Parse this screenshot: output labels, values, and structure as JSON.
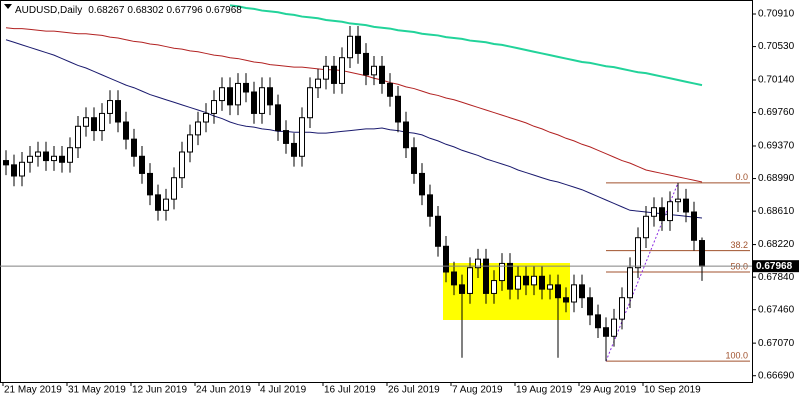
{
  "chart_data": {
    "type": "candlestick",
    "header": {
      "symbol": "AUDUSD,Daily"
    },
    "categories": [
      "21 May 2019",
      null,
      null,
      null,
      null,
      null,
      null,
      null,
      "31 May 2019",
      null,
      null,
      null,
      null,
      null,
      null,
      null,
      "12 Jun 2019",
      null,
      null,
      null,
      null,
      null,
      null,
      null,
      "24 Jun 2019",
      null,
      null,
      null,
      null,
      null,
      null,
      null,
      "4 Jul 2019",
      null,
      null,
      null,
      null,
      null,
      null,
      null,
      "16 Jul 2019",
      null,
      null,
      null,
      null,
      null,
      null,
      null,
      "26 Jul 2019",
      null,
      null,
      null,
      null,
      null,
      null,
      null,
      "7 Aug 2019",
      null,
      null,
      null,
      null,
      null,
      null,
      null,
      "19 Aug 2019",
      null,
      null,
      null,
      null,
      null,
      null,
      null,
      "29 Aug 2019",
      null,
      null,
      null,
      null,
      null,
      null,
      null,
      "10 Sep 2019",
      null,
      null,
      null,
      null,
      null,
      null,
      null
    ],
    "ohlc": {
      "open": [
        0.692,
        0.6915,
        0.6902,
        0.6918,
        0.6925,
        0.693,
        0.692,
        0.6925,
        0.6918,
        0.6935,
        0.696,
        0.697,
        0.6955,
        0.6975,
        0.699,
        0.6965,
        0.6945,
        0.6925,
        0.6905,
        0.688,
        0.6862,
        0.6875,
        0.69,
        0.693,
        0.695,
        0.6965,
        0.6975,
        0.699,
        0.7005,
        0.6985,
        0.701,
        0.7,
        0.6975,
        0.7005,
        0.6985,
        0.6955,
        0.694,
        0.6925,
        0.697,
        0.7005,
        0.7015,
        0.703,
        0.701,
        0.704,
        0.7065,
        0.7045,
        0.702,
        0.703,
        0.701,
        0.6995,
        0.6965,
        0.6935,
        0.6905,
        0.688,
        0.6855,
        0.682,
        0.679,
        0.6775,
        0.6765,
        0.6795,
        0.6805,
        0.6765,
        0.678,
        0.68,
        0.677,
        0.6785,
        0.6775,
        0.6785,
        0.677,
        0.6775,
        0.676,
        0.6755,
        0.6775,
        0.676,
        0.674,
        0.6725,
        0.6715,
        0.6735,
        0.676,
        0.6795,
        0.683,
        0.6855,
        0.6865,
        0.685,
        0.6872,
        0.6875,
        0.686,
        0.68267
      ],
      "high": [
        0.6932,
        0.6927,
        0.693,
        0.6937,
        0.6942,
        0.6942,
        0.6937,
        0.6937,
        0.6947,
        0.6972,
        0.6982,
        0.6982,
        0.6987,
        0.7002,
        0.7002,
        0.6977,
        0.6957,
        0.6937,
        0.6917,
        0.6892,
        0.6887,
        0.6912,
        0.6942,
        0.6962,
        0.6977,
        0.6987,
        0.7002,
        0.7017,
        0.7017,
        0.7022,
        0.7022,
        0.7012,
        0.7017,
        0.7017,
        0.6997,
        0.6967,
        0.6952,
        0.6982,
        0.7017,
        0.7027,
        0.7042,
        0.7042,
        0.7052,
        0.7077,
        0.7077,
        0.7057,
        0.7042,
        0.7042,
        0.7022,
        0.7007,
        0.6977,
        0.6947,
        0.6917,
        0.6892,
        0.6867,
        0.6832,
        0.6802,
        0.6787,
        0.6807,
        0.6817,
        0.6817,
        0.6792,
        0.6812,
        0.6812,
        0.6797,
        0.6797,
        0.6797,
        0.6797,
        0.6787,
        0.6787,
        0.6772,
        0.6787,
        0.6787,
        0.6772,
        0.6752,
        0.6737,
        0.6747,
        0.6772,
        0.6807,
        0.6842,
        0.6867,
        0.6877,
        0.6877,
        0.6884,
        0.6894,
        0.6887,
        0.6872,
        0.68302
      ],
      "low": [
        0.6903,
        0.689,
        0.689,
        0.6906,
        0.6913,
        0.6908,
        0.6908,
        0.6906,
        0.6906,
        0.6923,
        0.6948,
        0.6943,
        0.6943,
        0.6963,
        0.6953,
        0.6933,
        0.6913,
        0.6893,
        0.6868,
        0.685,
        0.685,
        0.6863,
        0.6888,
        0.6918,
        0.6938,
        0.6953,
        0.6963,
        0.6978,
        0.6973,
        0.6973,
        0.6988,
        0.6963,
        0.6963,
        0.6973,
        0.6943,
        0.6928,
        0.6913,
        0.6913,
        0.6958,
        0.6993,
        0.7003,
        0.6998,
        0.6998,
        0.7028,
        0.7033,
        0.7008,
        0.7008,
        0.6998,
        0.6983,
        0.6953,
        0.6923,
        0.6893,
        0.6868,
        0.6843,
        0.6808,
        0.6778,
        0.6763,
        0.669,
        0.6753,
        0.6783,
        0.6753,
        0.6753,
        0.6768,
        0.6758,
        0.6758,
        0.6763,
        0.6763,
        0.6758,
        0.6758,
        0.669,
        0.6743,
        0.6743,
        0.6748,
        0.6728,
        0.6713,
        0.6686,
        0.6703,
        0.6723,
        0.6748,
        0.6783,
        0.6818,
        0.6843,
        0.6838,
        0.6838,
        0.686,
        0.6848,
        0.6815,
        0.67796
      ],
      "close": [
        0.6915,
        0.6902,
        0.6918,
        0.6925,
        0.693,
        0.692,
        0.6925,
        0.6918,
        0.6935,
        0.696,
        0.697,
        0.6955,
        0.6975,
        0.699,
        0.6965,
        0.6945,
        0.6925,
        0.6905,
        0.688,
        0.6862,
        0.6875,
        0.69,
        0.693,
        0.695,
        0.6965,
        0.6975,
        0.699,
        0.7005,
        0.6985,
        0.701,
        0.7,
        0.6975,
        0.7005,
        0.6985,
        0.6955,
        0.694,
        0.6925,
        0.697,
        0.7005,
        0.7015,
        0.703,
        0.701,
        0.704,
        0.7065,
        0.7045,
        0.702,
        0.703,
        0.701,
        0.6995,
        0.6965,
        0.6935,
        0.6905,
        0.688,
        0.6855,
        0.682,
        0.679,
        0.6775,
        0.6765,
        0.6795,
        0.6805,
        0.6765,
        0.678,
        0.68,
        0.677,
        0.6785,
        0.6775,
        0.6785,
        0.677,
        0.6775,
        0.676,
        0.6755,
        0.6775,
        0.676,
        0.674,
        0.6725,
        0.6715,
        0.6735,
        0.676,
        0.6795,
        0.683,
        0.6855,
        0.6865,
        0.685,
        0.6872,
        0.6875,
        0.686,
        0.6827,
        0.67968
      ]
    },
    "up_color": "#ffffff",
    "down_color": "#000000",
    "moving_averages": [
      {
        "color": "#1a1a6e",
        "values": [
          0.7061,
          0.7058,
          0.7055,
          0.7052,
          0.7049,
          0.7046,
          0.7043,
          0.7039,
          0.7035,
          0.7031,
          0.7028,
          0.7024,
          0.702,
          0.7016,
          0.7012,
          0.7008,
          0.7005,
          0.7001,
          0.6997,
          0.6994,
          0.6991,
          0.6988,
          0.6985,
          0.6982,
          0.6979,
          0.6976,
          0.6972,
          0.6969,
          0.6965,
          0.6962,
          0.696,
          0.6959,
          0.6957,
          0.6956,
          0.6954,
          0.6954,
          0.6953,
          0.6953,
          0.6953,
          0.6952,
          0.6952,
          0.6953,
          0.6954,
          0.6955,
          0.6956,
          0.6957,
          0.6957,
          0.6958,
          0.6956,
          0.6955,
          0.6953,
          0.6952,
          0.695,
          0.6946,
          0.6943,
          0.6939,
          0.6936,
          0.6932,
          0.6929,
          0.6926,
          0.6922,
          0.6919,
          0.6916,
          0.6913,
          0.6909,
          0.6906,
          0.6903,
          0.69,
          0.6897,
          0.6895,
          0.6892,
          0.6889,
          0.6886,
          0.6882,
          0.6878,
          0.6874,
          0.687,
          0.6866,
          0.6862,
          0.6861,
          0.686,
          0.6859,
          0.6858,
          0.6857,
          0.6856,
          0.6855,
          0.6854,
          0.6853
        ]
      },
      {
        "color": "#b22222",
        "values": [
          0.7075,
          0.7074,
          0.7074,
          0.7073,
          0.7072,
          0.7071,
          0.7071,
          0.707,
          0.7069,
          0.7068,
          0.7068,
          0.7067,
          0.7066,
          0.7064,
          0.7063,
          0.7061,
          0.7059,
          0.7058,
          0.7056,
          0.7055,
          0.7053,
          0.7051,
          0.705,
          0.7048,
          0.7047,
          0.7045,
          0.7043,
          0.7042,
          0.704,
          0.7039,
          0.7037,
          0.7035,
          0.7034,
          0.7032,
          0.7031,
          0.703,
          0.7029,
          0.7029,
          0.7028,
          0.7027,
          0.7026,
          0.7026,
          0.7025,
          0.7023,
          0.7021,
          0.7019,
          0.7016,
          0.7014,
          0.7011,
          0.7009,
          0.7006,
          0.7004,
          0.7001,
          0.6998,
          0.6996,
          0.6993,
          0.6991,
          0.6988,
          0.6985,
          0.6982,
          0.6979,
          0.6976,
          0.6973,
          0.697,
          0.6967,
          0.6964,
          0.696,
          0.6957,
          0.6953,
          0.695,
          0.6946,
          0.6943,
          0.6939,
          0.6936,
          0.6932,
          0.6928,
          0.6924,
          0.692,
          0.6917,
          0.6913,
          0.6909,
          0.6907,
          0.6905,
          0.6903,
          0.6901,
          0.6899,
          0.6897,
          0.6895
        ]
      },
      {
        "color": "#22d39a",
        "values": [
          null,
          null,
          null,
          null,
          null,
          null,
          null,
          null,
          null,
          null,
          null,
          null,
          null,
          null,
          null,
          null,
          null,
          null,
          null,
          null,
          null,
          null,
          null,
          null,
          null,
          null,
          null,
          null,
          0.7101,
          0.71,
          0.7098,
          0.7097,
          0.7095,
          0.7094,
          0.7093,
          0.7091,
          0.709,
          0.7088,
          0.7087,
          0.7086,
          0.7084,
          0.7083,
          0.7082,
          0.708,
          0.7079,
          0.7078,
          0.7076,
          0.7075,
          0.7074,
          0.7072,
          0.7071,
          0.707,
          0.7068,
          0.7067,
          0.7066,
          0.7064,
          0.7063,
          0.7062,
          0.706,
          0.7059,
          0.7058,
          0.7056,
          0.7055,
          0.7053,
          0.7051,
          0.7049,
          0.7047,
          0.7045,
          0.7043,
          0.7041,
          0.7039,
          0.7037,
          0.7035,
          0.7034,
          0.7032,
          0.703,
          0.7029,
          0.7027,
          0.7025,
          0.7023,
          0.7022,
          0.702,
          0.7018,
          0.7016,
          0.7014,
          0.7012,
          0.701,
          0.7008
        ]
      }
    ],
    "fibonacci": {
      "color": "#a0522d",
      "levels": [
        {
          "ratio_label": "0.0",
          "price": 0.6894
        },
        {
          "ratio_label": "38.2",
          "price": 0.6815
        },
        {
          "ratio_label": "50.0",
          "price": 0.679
        },
        {
          "ratio_label": "100.0",
          "price": 0.6686
        }
      ]
    },
    "ylim": [
      0.6664,
      0.7105
    ],
    "yticks": [
      {
        "value": 0.7091,
        "label": "0.70910"
      },
      {
        "value": 0.7053,
        "label": "0.70530"
      },
      {
        "value": 0.7014,
        "label": "0.70140"
      },
      {
        "value": 0.6976,
        "label": "0.69760"
      },
      {
        "value": 0.6937,
        "label": "0.69370"
      },
      {
        "value": 0.6899,
        "label": "0.68990"
      },
      {
        "value": 0.6861,
        "label": "0.68610"
      },
      {
        "value": 0.6822,
        "label": "0.68220"
      },
      {
        "value": 0.6784,
        "label": "0.67840"
      },
      {
        "value": 0.6746,
        "label": "0.67460"
      },
      {
        "value": 0.6707,
        "label": "0.67070"
      },
      {
        "value": 0.6669,
        "label": "0.66690"
      }
    ]
  }
}
